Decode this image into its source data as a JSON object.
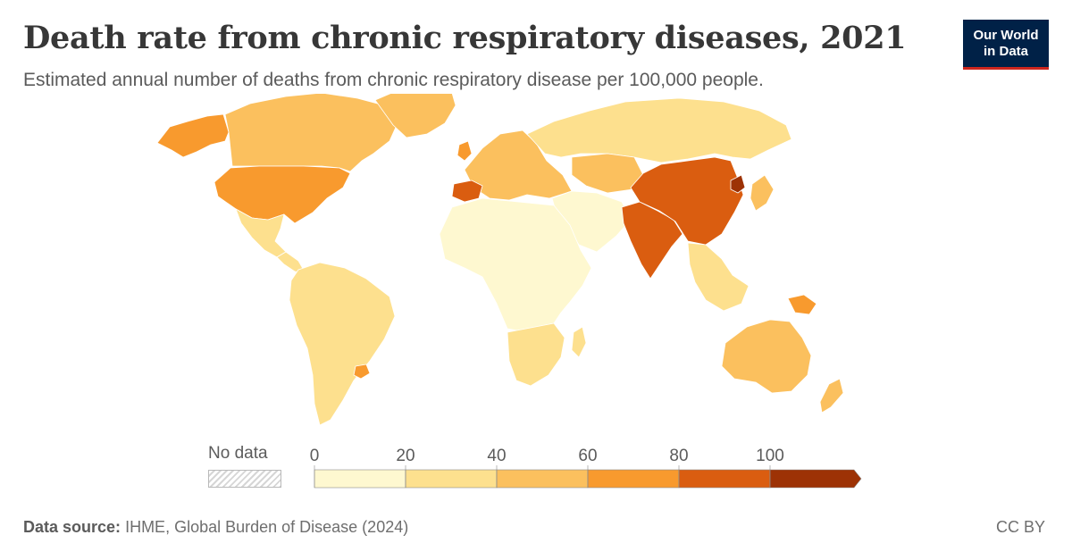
{
  "header": {
    "title": "Death rate from chronic respiratory diseases, 2021",
    "subtitle": "Estimated annual number of deaths from chronic respiratory disease per 100,000 people."
  },
  "logo": {
    "line1": "Our World",
    "line2": "in Data"
  },
  "legend": {
    "no_data_label": "No data",
    "ticks": [
      "0",
      "20",
      "40",
      "60",
      "80",
      "100"
    ],
    "bins": [
      {
        "from": 0,
        "to": 20,
        "color": "#fef8d0"
      },
      {
        "from": 20,
        "to": 40,
        "color": "#fde08e"
      },
      {
        "from": 40,
        "to": 60,
        "color": "#fbc05e"
      },
      {
        "from": 60,
        "to": 80,
        "color": "#f89a2e"
      },
      {
        "from": 80,
        "to": 100,
        "color": "#da5d10"
      },
      {
        "from": 100,
        "to": null,
        "color": "#9d3205"
      }
    ]
  },
  "map_regions": [
    {
      "name": "Alaska",
      "bin": 3
    },
    {
      "name": "Canada",
      "bin": 2
    },
    {
      "name": "Greenland",
      "bin": 2
    },
    {
      "name": "United States",
      "bin": 3
    },
    {
      "name": "Mexico",
      "bin": 1
    },
    {
      "name": "Central America",
      "bin": 1
    },
    {
      "name": "South America",
      "bin": 1
    },
    {
      "name": "Uruguay",
      "bin": 3
    },
    {
      "name": "Western Europe",
      "bin": 2
    },
    {
      "name": "United Kingdom",
      "bin": 3
    },
    {
      "name": "Spain",
      "bin": 4
    },
    {
      "name": "Russia",
      "bin": 1
    },
    {
      "name": "Central Asia",
      "bin": 2
    },
    {
      "name": "Middle East",
      "bin": 0
    },
    {
      "name": "Africa",
      "bin": 0
    },
    {
      "name": "Southern Africa",
      "bin": 1
    },
    {
      "name": "South Asia",
      "bin": 4
    },
    {
      "name": "China",
      "bin": 4
    },
    {
      "name": "North Korea",
      "bin": 5
    },
    {
      "name": "Japan",
      "bin": 2
    },
    {
      "name": "Southeast Asia",
      "bin": 1
    },
    {
      "name": "Papua New Guinea",
      "bin": 3
    },
    {
      "name": "Australia",
      "bin": 2
    },
    {
      "name": "New Zealand",
      "bin": 2
    },
    {
      "name": "Madagascar",
      "bin": 1
    }
  ],
  "footer": {
    "source_label": "Data source:",
    "source_text": "IHME, Global Burden of Disease (2024)",
    "license": "CC BY"
  },
  "colors": {
    "border": "#ffffff",
    "text": "#5b5b5b",
    "logo_bg": "#002147",
    "logo_accent": "#ce261e"
  }
}
